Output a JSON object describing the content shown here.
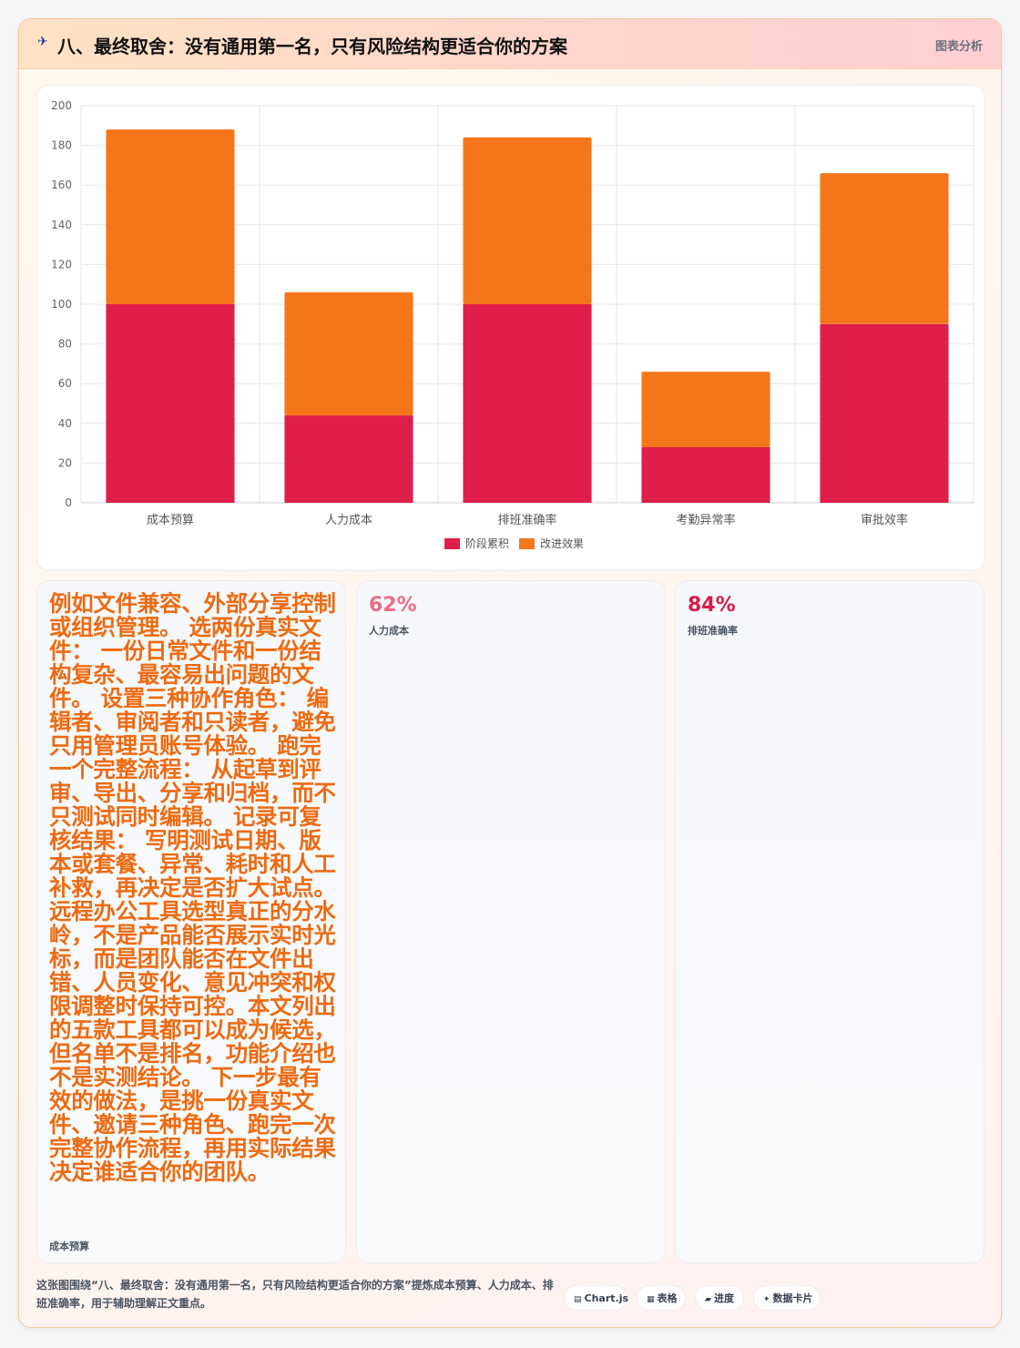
{
  "header": {
    "icon": "plane-icon",
    "title": "八、最终取舍：没有通用第一名，只有风险结构更适合你的方案",
    "tag": "图表分析"
  },
  "colors": {
    "stage": "#e01e4a",
    "improve": "#f5761a"
  },
  "chart_data": {
    "type": "bar",
    "stacked": true,
    "categories": [
      "成本预算",
      "人力成本",
      "排班准确率",
      "考勤异常率",
      "审批效率"
    ],
    "series": [
      {
        "name": "阶段累积",
        "values": [
          100,
          44,
          100,
          28,
          90
        ]
      },
      {
        "name": "改进效果",
        "values": [
          88,
          62,
          84,
          38,
          76
        ]
      }
    ],
    "yticks": [
      "0",
      "20",
      "40",
      "60",
      "80",
      "100",
      "120",
      "140",
      "160",
      "180",
      "200"
    ],
    "ylim": [
      0,
      200
    ],
    "legend_position": "bottom",
    "grid": true
  },
  "stats": [
    {
      "text": "例如文件兼容、外部分享控制或组织管理。 选两份真实文件： 一份日常文件和一份结构复杂、最容易出问题的文件。 设置三种协作角色： 编辑者、审阅者和只读者，避免只用管理员账号体验。 跑完一个完整流程： 从起草到评审、导出、分享和归档，而不只测试同时编辑。 记录可复核结果： 写明测试日期、版本或套餐、异常、耗时和人工补救，再决定是否扩大试点。 远程办公工具选型真正的分水岭，不是产品能否展示实时光标，而是团队能否在文件出错、人员变化、意见冲突和权限调整时保持可控。本文列出的五款工具都可以成为候选，但名单不是排名，功能介绍也不是实测结论。 下一步最有效的做法，是挑一份真实文件、邀请三种角色、跑完一次完整协作流程，再用实际结果决定谁适合你的团队。",
      "label": "成本预算"
    },
    {
      "value": "62%",
      "label": "人力成本",
      "color": "#f06b86"
    },
    {
      "value": "84%",
      "label": "排班准确率",
      "color": "#d81b4a"
    }
  ],
  "footer": {
    "text": "这张图围绕“八、最终取舍：没有通用第一名，只有风险结构更适合你的方案”提炼成本预算、人力成本、排班准确率，用于辅助理解正文重点。",
    "chips": [
      {
        "icon": "▤",
        "label": "Chart.js"
      },
      {
        "icon": "▦",
        "label": "表格"
      },
      {
        "icon": "▰",
        "label": "进度"
      },
      {
        "icon": "✦",
        "label": "数据卡片"
      }
    ]
  }
}
